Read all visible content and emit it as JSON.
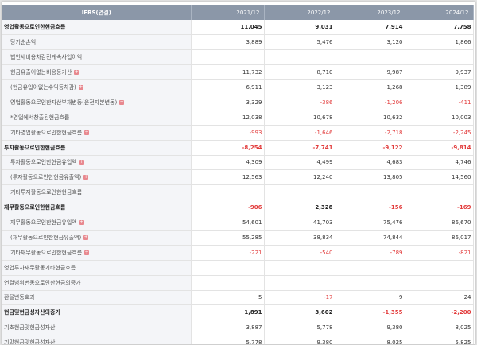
{
  "table": {
    "header": [
      "IFRS(연결)",
      "2021/12",
      "2022/12",
      "2023/12",
      "2024/12"
    ],
    "rows": [
      {
        "label": "영업활동으로인한현금흐름",
        "level": "major",
        "expand": false,
        "values": [
          "11,045",
          "9,031",
          "7,914",
          "7,758"
        ]
      },
      {
        "label": "당기순손익",
        "level": "minor",
        "expand": false,
        "values": [
          "3,889",
          "5,476",
          "3,120",
          "1,866"
        ]
      },
      {
        "label": "법인세비용차감전계속사업이익",
        "level": "minor",
        "expand": false,
        "values": [
          "",
          "",
          "",
          ""
        ]
      },
      {
        "label": "현금유출이없는비용등가산",
        "level": "minor",
        "expand": true,
        "values": [
          "11,732",
          "8,710",
          "9,987",
          "9,937"
        ]
      },
      {
        "label": "(현금유입이없는수익등차감)",
        "level": "minor",
        "expand": true,
        "values": [
          "6,911",
          "3,123",
          "1,268",
          "1,389"
        ]
      },
      {
        "label": "영업활동으로인한자산부채변동(운전자본변동)",
        "level": "minor",
        "expand": true,
        "values": [
          "3,329",
          "-386",
          "-1,206",
          "-411"
        ]
      },
      {
        "label": "*영업에서창출된현금흐름",
        "level": "minor",
        "expand": false,
        "values": [
          "12,038",
          "10,678",
          "10,632",
          "10,003"
        ]
      },
      {
        "label": "기타영업활동으로인한현금흐름",
        "level": "minor",
        "expand": true,
        "values": [
          "-993",
          "-1,646",
          "-2,718",
          "-2,245"
        ]
      },
      {
        "label": "투자활동으로인한현금흐름",
        "level": "major",
        "expand": false,
        "values": [
          "-8,254",
          "-7,741",
          "-9,122",
          "-9,814"
        ]
      },
      {
        "label": "투자활동으로인한현금유입액",
        "level": "minor",
        "expand": true,
        "values": [
          "4,309",
          "4,499",
          "4,683",
          "4,746"
        ]
      },
      {
        "label": "(투자활동으로인한현금유출액)",
        "level": "minor",
        "expand": true,
        "values": [
          "12,563",
          "12,240",
          "13,805",
          "14,560"
        ]
      },
      {
        "label": "기타투자활동으로인한현금흐름",
        "level": "minor",
        "expand": false,
        "values": [
          "",
          "",
          "",
          ""
        ]
      },
      {
        "label": "재무활동으로인한현금흐름",
        "level": "major",
        "expand": false,
        "values": [
          "-906",
          "2,328",
          "-156",
          "-169"
        ]
      },
      {
        "label": "재무활동으로인한현금유입액",
        "level": "minor",
        "expand": true,
        "values": [
          "54,601",
          "41,703",
          "75,476",
          "86,670"
        ]
      },
      {
        "label": "(재무활동으로인한현금유출액)",
        "level": "minor",
        "expand": true,
        "values": [
          "55,285",
          "38,834",
          "74,844",
          "86,017"
        ]
      },
      {
        "label": "기타재무활동으로인한현금흐름",
        "level": "minor",
        "expand": true,
        "values": [
          "-221",
          "-540",
          "-789",
          "-821"
        ]
      },
      {
        "label": "영업투자재무활동기타현금흐름",
        "level": "major-plain",
        "expand": false,
        "values": [
          "",
          "",
          "",
          ""
        ]
      },
      {
        "label": "연결범위변동으로인한현금의증가",
        "level": "major-plain",
        "expand": false,
        "values": [
          "",
          "",
          "",
          ""
        ]
      },
      {
        "label": "환율변동효과",
        "level": "major-plain",
        "expand": false,
        "values": [
          "5",
          "-17",
          "9",
          "24"
        ]
      },
      {
        "label": "현금및현금성자산의증가",
        "level": "major",
        "expand": false,
        "values": [
          "1,891",
          "3,602",
          "-1,355",
          "-2,200"
        ]
      },
      {
        "label": "기초현금및현금성자산",
        "level": "major-plain",
        "expand": false,
        "values": [
          "3,887",
          "5,778",
          "9,380",
          "8,025"
        ]
      },
      {
        "label": "기말현금및현금성자산",
        "level": "major-plain",
        "expand": false,
        "values": [
          "5,778",
          "9,380",
          "8,025",
          "5,825"
        ]
      }
    ]
  },
  "expand_icon": "plus-icon",
  "colors": {
    "header_bg": "#8b97a8",
    "negative": "#e23b3b",
    "expand": "#e8888f"
  }
}
